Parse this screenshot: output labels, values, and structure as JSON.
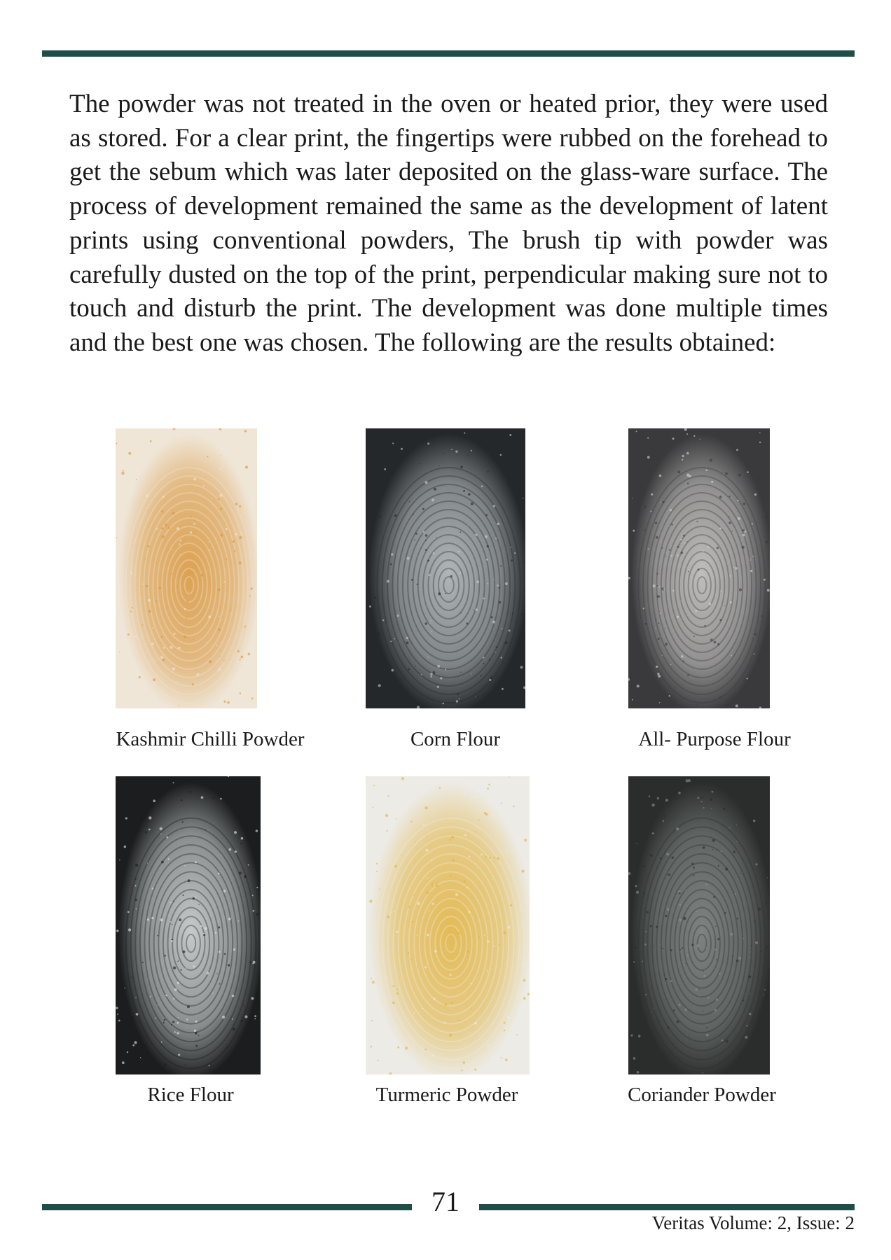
{
  "body_text": "The powder was not treated in the oven or heated prior, they were used as stored. For a clear print, the fingertips were rubbed on the forehead to get the sebum which was later deposited on the glass-ware surface. The process of development remained the same as the development of latent prints using conventional powders, The brush tip with powder was carefully dusted on the top of the print, perpendicular making sure not to touch and disturb the print. The development was done multiple times and the best one was chosen. The following are the results obtained:",
  "figures": [
    {
      "caption": "Kashmir Chilli Powder",
      "background": "#efe6d8",
      "print_color": "#d9953a"
    },
    {
      "caption": "Corn Flour",
      "background": "#25282a",
      "print_color": "#c9d0d2"
    },
    {
      "caption": "All- Purpose Flour",
      "background": "#3a3a3c",
      "print_color": "#d8d6d4"
    },
    {
      "caption": "Rice Flour",
      "background": "#1b1d1e",
      "print_color": "#e4e9ea"
    },
    {
      "caption": "Turmeric Powder",
      "background": "#ecebe6",
      "print_color": "#e2b23a"
    },
    {
      "caption": "Coriander Powder",
      "background": "#2a2d2c",
      "print_color": "#8d9290"
    }
  ],
  "footer": {
    "page_number": "71",
    "journal": "Veritas Volume: 2, Issue: 2"
  }
}
